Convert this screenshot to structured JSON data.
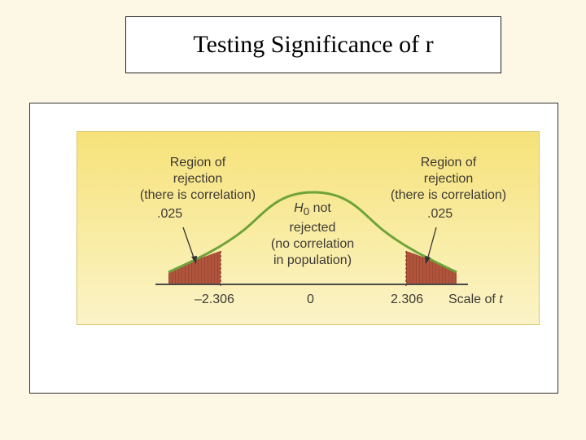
{
  "slide": {
    "title": "Testing Significance of r"
  },
  "diagram": {
    "left_region": {
      "line1": "Region of",
      "line2": "rejection",
      "line3": "(there is correlation)",
      "alpha": ".025"
    },
    "right_region": {
      "line1": "Region of",
      "line2": "rejection",
      "line3": "(there is correlation)",
      "alpha": ".025"
    },
    "center": {
      "h0_symbol": "H",
      "h0_subscript": "0",
      "h0_suffix": " not",
      "line2": "rejected",
      "line3": "(no correlation",
      "line4": "in population)"
    },
    "ticks": {
      "left": "–2.306",
      "center": "0",
      "right": "2.306"
    },
    "axis_label_text": "Scale of ",
    "axis_label_var": "t",
    "colors": {
      "curve": "#6ea33a",
      "shade": "#a8432f",
      "text": "#3d3a34"
    }
  }
}
